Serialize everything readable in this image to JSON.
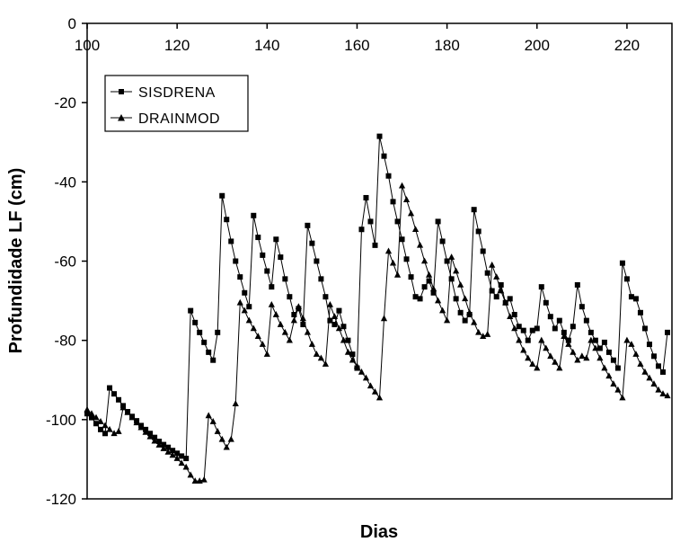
{
  "chart_data": {
    "type": "line",
    "title": "",
    "xlabel": "Dias",
    "ylabel": "Profundidade LF (cm)",
    "xlim": [
      100,
      230
    ],
    "ylim": [
      -120,
      0
    ],
    "x_ticks": [
      100,
      120,
      140,
      160,
      180,
      200,
      220
    ],
    "y_ticks": [
      0,
      -20,
      -40,
      -60,
      -80,
      -100,
      -120
    ],
    "x_axis_position": "top",
    "grid": false,
    "legend_position": "top-left",
    "series": [
      {
        "name": "SISDRENA",
        "marker": "square",
        "color": "#000000",
        "points": [
          [
            100,
            -98.5
          ],
          [
            101,
            -99.5
          ],
          [
            102,
            -101
          ],
          [
            103,
            -102.5
          ],
          [
            104,
            -103.5
          ],
          [
            105,
            -92
          ],
          [
            106,
            -93.5
          ],
          [
            107,
            -95
          ],
          [
            108,
            -96.5
          ],
          [
            109,
            -98
          ],
          [
            110,
            -99.2
          ],
          [
            111,
            -100.3
          ],
          [
            112,
            -101.5
          ],
          [
            113,
            -102.5
          ],
          [
            114,
            -103.5
          ],
          [
            115,
            -104.5
          ],
          [
            116,
            -105.5
          ],
          [
            117,
            -106.3
          ],
          [
            118,
            -107
          ],
          [
            119,
            -107.8
          ],
          [
            120,
            -108.5
          ],
          [
            121,
            -109.2
          ],
          [
            122,
            -109.8
          ],
          [
            123,
            -72.5
          ],
          [
            124,
            -75.5
          ],
          [
            125,
            -78
          ],
          [
            126,
            -80.5
          ],
          [
            127,
            -83
          ],
          [
            128,
            -85
          ],
          [
            129,
            -78
          ],
          [
            130,
            -43.5
          ],
          [
            131,
            -49.5
          ],
          [
            132,
            -55
          ],
          [
            133,
            -60
          ],
          [
            134,
            -64
          ],
          [
            135,
            -68
          ],
          [
            136,
            -71.5
          ],
          [
            137,
            -48.5
          ],
          [
            138,
            -54
          ],
          [
            139,
            -58.5
          ],
          [
            140,
            -62.5
          ],
          [
            141,
            -66.5
          ],
          [
            142,
            -54.5
          ],
          [
            143,
            -59
          ],
          [
            144,
            -64.5
          ],
          [
            145,
            -69
          ],
          [
            146,
            -73.5
          ],
          [
            147,
            -72
          ],
          [
            148,
            -76
          ],
          [
            149,
            -51
          ],
          [
            150,
            -55.5
          ],
          [
            151,
            -60
          ],
          [
            152,
            -64.5
          ],
          [
            153,
            -69
          ],
          [
            154,
            -75
          ],
          [
            155,
            -76
          ],
          [
            156,
            -72.5
          ],
          [
            157,
            -76.5
          ],
          [
            158,
            -80
          ],
          [
            159,
            -83.5
          ],
          [
            160,
            -87
          ],
          [
            161,
            -52
          ],
          [
            162,
            -44
          ],
          [
            163,
            -50
          ],
          [
            164,
            -56
          ],
          [
            165,
            -28.5
          ],
          [
            166,
            -33.5
          ],
          [
            167,
            -38.5
          ],
          [
            168,
            -45
          ],
          [
            169,
            -50
          ],
          [
            170,
            -54.5
          ],
          [
            171,
            -59.5
          ],
          [
            172,
            -64
          ],
          [
            173,
            -69
          ],
          [
            174,
            -69.5
          ],
          [
            175,
            -66.5
          ],
          [
            176,
            -65
          ],
          [
            177,
            -68
          ],
          [
            178,
            -50
          ],
          [
            179,
            -55
          ],
          [
            180,
            -60
          ],
          [
            181,
            -64.5
          ],
          [
            182,
            -69.5
          ],
          [
            183,
            -73
          ],
          [
            184,
            -75
          ],
          [
            185,
            -73.5
          ],
          [
            186,
            -47
          ],
          [
            187,
            -52.5
          ],
          [
            188,
            -57.5
          ],
          [
            189,
            -63
          ],
          [
            190,
            -67.5
          ],
          [
            191,
            -69
          ],
          [
            192,
            -66
          ],
          [
            193,
            -70.5
          ],
          [
            194,
            -69.5
          ],
          [
            195,
            -73.5
          ],
          [
            196,
            -76.5
          ],
          [
            197,
            -77.5
          ],
          [
            198,
            -80
          ],
          [
            199,
            -77.5
          ],
          [
            200,
            -77
          ],
          [
            201,
            -66.5
          ],
          [
            202,
            -70.5
          ],
          [
            203,
            -74
          ],
          [
            204,
            -77
          ],
          [
            205,
            -75
          ],
          [
            206,
            -78
          ],
          [
            207,
            -80
          ],
          [
            208,
            -76.5
          ],
          [
            209,
            -66
          ],
          [
            210,
            -71.5
          ],
          [
            211,
            -75
          ],
          [
            212,
            -78
          ],
          [
            213,
            -80
          ],
          [
            214,
            -82
          ],
          [
            215,
            -80.5
          ],
          [
            216,
            -83
          ],
          [
            217,
            -85
          ],
          [
            218,
            -87
          ],
          [
            219,
            -60.5
          ],
          [
            220,
            -64.5
          ],
          [
            221,
            -69
          ],
          [
            222,
            -69.5
          ],
          [
            223,
            -73
          ],
          [
            224,
            -77
          ],
          [
            225,
            -81
          ],
          [
            226,
            -84
          ],
          [
            227,
            -86.5
          ],
          [
            228,
            -88
          ],
          [
            229,
            -78
          ]
        ]
      },
      {
        "name": "DRAINMOD",
        "marker": "triangle",
        "color": "#000000",
        "points": [
          [
            100,
            -97.5
          ],
          [
            101,
            -98.5
          ],
          [
            102,
            -99.5
          ],
          [
            103,
            -100.5
          ],
          [
            104,
            -101.5
          ],
          [
            105,
            -102.5
          ],
          [
            106,
            -103.5
          ],
          [
            107,
            -103
          ],
          [
            108,
            -97
          ],
          [
            109,
            -98.2
          ],
          [
            110,
            -99.5
          ],
          [
            111,
            -100.8
          ],
          [
            112,
            -102
          ],
          [
            113,
            -103.2
          ],
          [
            114,
            -104.3
          ],
          [
            115,
            -105.4
          ],
          [
            116,
            -106.4
          ],
          [
            117,
            -107.3
          ],
          [
            118,
            -108.2
          ],
          [
            119,
            -109
          ],
          [
            120,
            -109.8
          ],
          [
            121,
            -111
          ],
          [
            122,
            -112
          ],
          [
            123,
            -114
          ],
          [
            124,
            -115.5
          ],
          [
            125,
            -115.5
          ],
          [
            126,
            -115.2
          ],
          [
            127,
            -99
          ],
          [
            128,
            -100.5
          ],
          [
            129,
            -103
          ],
          [
            130,
            -105
          ],
          [
            131,
            -107
          ],
          [
            132,
            -105
          ],
          [
            133,
            -96
          ],
          [
            134,
            -70.5
          ],
          [
            135,
            -72.5
          ],
          [
            136,
            -75
          ],
          [
            137,
            -77
          ],
          [
            138,
            -79
          ],
          [
            139,
            -81
          ],
          [
            140,
            -83.5
          ],
          [
            141,
            -71
          ],
          [
            142,
            -73.5
          ],
          [
            143,
            -76
          ],
          [
            144,
            -78
          ],
          [
            145,
            -80
          ],
          [
            146,
            -75
          ],
          [
            147,
            -71.5
          ],
          [
            148,
            -74.5
          ],
          [
            149,
            -78
          ],
          [
            150,
            -81
          ],
          [
            151,
            -83.5
          ],
          [
            152,
            -84.5
          ],
          [
            153,
            -86
          ],
          [
            154,
            -71
          ],
          [
            155,
            -74
          ],
          [
            156,
            -77
          ],
          [
            157,
            -80
          ],
          [
            158,
            -83
          ],
          [
            159,
            -85
          ],
          [
            160,
            -86.5
          ],
          [
            161,
            -88
          ],
          [
            162,
            -89.5
          ],
          [
            163,
            -91.5
          ],
          [
            164,
            -93
          ],
          [
            165,
            -94.5
          ],
          [
            166,
            -74.5
          ],
          [
            167,
            -57.5
          ],
          [
            168,
            -60.5
          ],
          [
            169,
            -63.5
          ],
          [
            170,
            -41
          ],
          [
            171,
            -44.5
          ],
          [
            172,
            -48
          ],
          [
            173,
            -52
          ],
          [
            174,
            -56
          ],
          [
            175,
            -60
          ],
          [
            176,
            -63.5
          ],
          [
            177,
            -67
          ],
          [
            178,
            -70
          ],
          [
            179,
            -72.5
          ],
          [
            180,
            -75
          ],
          [
            181,
            -59
          ],
          [
            182,
            -62.5
          ],
          [
            183,
            -66
          ],
          [
            184,
            -69.5
          ],
          [
            185,
            -73
          ],
          [
            186,
            -75.5
          ],
          [
            187,
            -78
          ],
          [
            188,
            -79
          ],
          [
            189,
            -78.5
          ],
          [
            190,
            -61
          ],
          [
            191,
            -64
          ],
          [
            192,
            -67.5
          ],
          [
            193,
            -70.5
          ],
          [
            194,
            -74
          ],
          [
            195,
            -77
          ],
          [
            196,
            -80
          ],
          [
            197,
            -82.5
          ],
          [
            198,
            -84.5
          ],
          [
            199,
            -86
          ],
          [
            200,
            -87
          ],
          [
            201,
            -80
          ],
          [
            202,
            -82
          ],
          [
            203,
            -84
          ],
          [
            204,
            -85.5
          ],
          [
            205,
            -87
          ],
          [
            206,
            -79
          ],
          [
            207,
            -81
          ],
          [
            208,
            -83
          ],
          [
            209,
            -85
          ],
          [
            210,
            -84
          ],
          [
            211,
            -84.5
          ],
          [
            212,
            -80
          ],
          [
            213,
            -82
          ],
          [
            214,
            -84.5
          ],
          [
            215,
            -87
          ],
          [
            216,
            -89
          ],
          [
            217,
            -91
          ],
          [
            218,
            -92.5
          ],
          [
            219,
            -94.5
          ],
          [
            220,
            -80
          ],
          [
            221,
            -81
          ],
          [
            222,
            -83.5
          ],
          [
            223,
            -86
          ],
          [
            224,
            -88
          ],
          [
            225,
            -89.5
          ],
          [
            226,
            -91
          ],
          [
            227,
            -92.5
          ],
          [
            228,
            -93.5
          ],
          [
            229,
            -94
          ]
        ]
      }
    ]
  }
}
